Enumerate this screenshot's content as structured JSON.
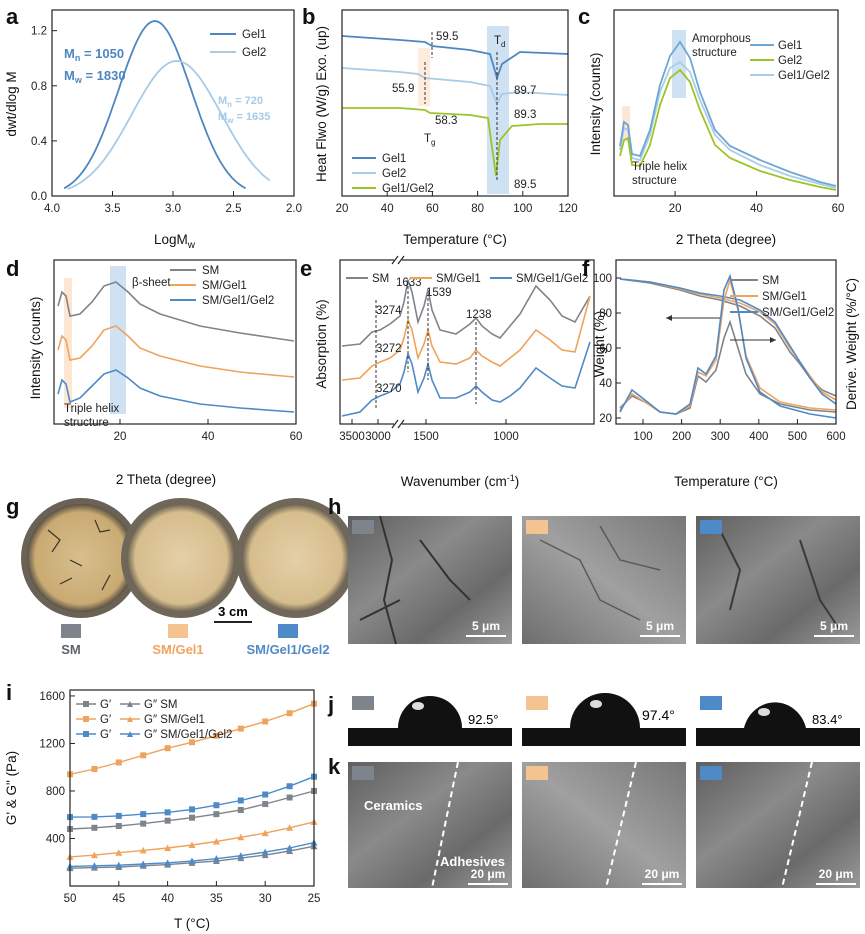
{
  "panels": {
    "a": {
      "label": "a"
    },
    "b": {
      "label": "b"
    },
    "c": {
      "label": "c"
    },
    "d": {
      "label": "d"
    },
    "e": {
      "label": "e"
    },
    "f": {
      "label": "f"
    },
    "g": {
      "label": "g",
      "scale": "3 cm",
      "samples": [
        "SM",
        "SM/Gel1",
        "SM/Gel1/Gel2"
      ]
    },
    "h": {
      "label": "h",
      "scale": "5 μm"
    },
    "i": {
      "label": "i"
    },
    "j": {
      "label": "j",
      "angles": [
        "92.5°",
        "97.4°",
        "83.4°"
      ]
    },
    "k": {
      "label": "k",
      "scale": "20 μm",
      "tag_ceramics": "Ceramics",
      "tag_adhesives": "Adhesives"
    }
  },
  "colors": {
    "gel1": "#4e86c0",
    "gel2": "#a8cbe6",
    "gel12": "#9dc427",
    "sm": "#7e848c",
    "smgel1": "#efa35c",
    "smgel12": "#4f8ac8",
    "band_blue": "#cfe2f3",
    "band_orange": "#fde6d2"
  },
  "chart_data": [
    {
      "id": "a",
      "type": "line",
      "xlabel": "LogM",
      "xlabel_sub": "w",
      "ylabel": "dwt/dlog M",
      "xlim": [
        4.0,
        2.0
      ],
      "ylim": [
        0,
        1.35
      ],
      "xticks": [
        "4.0",
        "3.5",
        "3.0",
        "2.5",
        "2.0"
      ],
      "yticks": [
        "0.0",
        "0.4",
        "0.8",
        "1.2"
      ],
      "series": [
        {
          "name": "Gel1",
          "center": 3.15,
          "sigma": 0.3,
          "peak": 1.27,
          "x_range": [
            3.9,
            2.4
          ]
        },
        {
          "name": "Gel2",
          "center": 2.97,
          "sigma": 0.37,
          "peak": 0.98,
          "x_range": [
            3.87,
            2.2
          ]
        }
      ],
      "annotations": {
        "mn1": "M",
        "mn1_sub": "n",
        "mn1_val": " = 1050",
        "mw1": "M",
        "mw1_sub": "w",
        "mw1_val": " = 1830",
        "mn2": "M",
        "mn2_sub": "n",
        "mn2_val": " = 720",
        "mw2": "M",
        "mw2_sub": "w",
        "mw2_val": " = 1635"
      }
    },
    {
      "id": "b",
      "type": "line",
      "xlabel": "Temperature (°C)",
      "ylabel": "Heat Flwo (W/g) Exo. (up)",
      "xlim": [
        20,
        120
      ],
      "xticks": [
        "20",
        "40",
        "60",
        "80",
        "100",
        "120"
      ],
      "series": [
        "Gel1",
        "Gel2",
        "Gel1/Gel2"
      ],
      "annotations": [
        "59.5",
        "55.9",
        "58.3",
        "89.7",
        "89.3",
        "89.5"
      ],
      "tg": "T",
      "tg_sub": "g",
      "td": "T",
      "td_sub": "d"
    },
    {
      "id": "c",
      "type": "line",
      "xlabel": "2 Theta (degree)",
      "ylabel": "Intensity (counts)",
      "xlim": [
        5,
        60
      ],
      "xticks": [
        "20",
        "40",
        "60"
      ],
      "series": [
        "Gel1",
        "Gel2",
        "Gel1/Gel2"
      ],
      "annotations": [
        "Amorphous",
        "structure",
        "Triple helix",
        "structure"
      ]
    },
    {
      "id": "d",
      "type": "line",
      "xlabel": "2 Theta (degree)",
      "ylabel": "Intensity (counts)",
      "xlim": [
        5,
        60
      ],
      "xticks": [
        "20",
        "40",
        "60"
      ],
      "series": [
        "SM",
        "SM/Gel1",
        "SM/Gel1/Gel2"
      ],
      "annotations": [
        "β-sheet",
        "Triple helix",
        "structure"
      ]
    },
    {
      "id": "e",
      "type": "line",
      "xlabel": "Wavenumber (cm",
      "xlabel_sup": "-1",
      "xlabel_end": ")",
      "ylabel": "Absorption (%)",
      "xlim": [
        3700,
        600
      ],
      "xticks": [
        "3500",
        "3000",
        "1500",
        "1000"
      ],
      "series": [
        "SM",
        "SM/Gel1",
        "SM/Gel1/Gel2"
      ],
      "annotations": [
        "1633",
        "1539",
        "1238",
        "3274",
        "3272",
        "3270"
      ]
    },
    {
      "id": "f",
      "type": "line",
      "xlabel": "Temperature (°C)",
      "ylabel": "Weight (%)",
      "ylabel2": "Derive. Weight (%/°C)",
      "xlim": [
        30,
        600
      ],
      "ylim": [
        20,
        100
      ],
      "xticks": [
        "100",
        "200",
        "300",
        "400",
        "500",
        "600"
      ],
      "yticks": [
        "20",
        "40",
        "60",
        "80",
        "100"
      ],
      "series": [
        "SM",
        "SM/Gel1",
        "SM/Gel1/Gel2"
      ]
    },
    {
      "id": "i",
      "type": "line",
      "xlabel": "T (°C)",
      "ylabel": "G' & G\" (Pa)",
      "xlim": [
        50,
        25
      ],
      "ylim": [
        0,
        1650
      ],
      "xticks": [
        "50",
        "45",
        "40",
        "35",
        "30",
        "25"
      ],
      "yticks": [
        "400",
        "800",
        "1200",
        "1600"
      ],
      "T": [
        50,
        47.5,
        45,
        42.5,
        40,
        37.5,
        35,
        32.5,
        30,
        27.5,
        25
      ],
      "series": [
        {
          "name": "G' SM",
          "values": [
            480,
            490,
            505,
            525,
            550,
            575,
            605,
            640,
            690,
            745,
            800
          ]
        },
        {
          "name": "G\" SM",
          "values": [
            150,
            155,
            160,
            170,
            180,
            195,
            210,
            235,
            260,
            295,
            335
          ]
        },
        {
          "name": "G' SM/Gel1",
          "values": [
            940,
            985,
            1040,
            1100,
            1160,
            1210,
            1265,
            1325,
            1385,
            1455,
            1535
          ]
        },
        {
          "name": "G\" SM/Gel1",
          "values": [
            245,
            260,
            280,
            300,
            320,
            345,
            375,
            410,
            445,
            490,
            540
          ]
        },
        {
          "name": "G' SM/Gel1/Gel2",
          "values": [
            580,
            582,
            590,
            605,
            620,
            645,
            680,
            720,
            770,
            840,
            920
          ]
        },
        {
          "name": "G\" SM/Gel1/Gel2",
          "values": [
            165,
            170,
            175,
            185,
            195,
            210,
            230,
            255,
            285,
            320,
            365
          ]
        }
      ],
      "legend": [
        "G′",
        "G″ SM",
        "G′",
        "G″ SM/Gel1",
        "G′",
        "G″ SM/Gel1/Gel2"
      ]
    }
  ]
}
